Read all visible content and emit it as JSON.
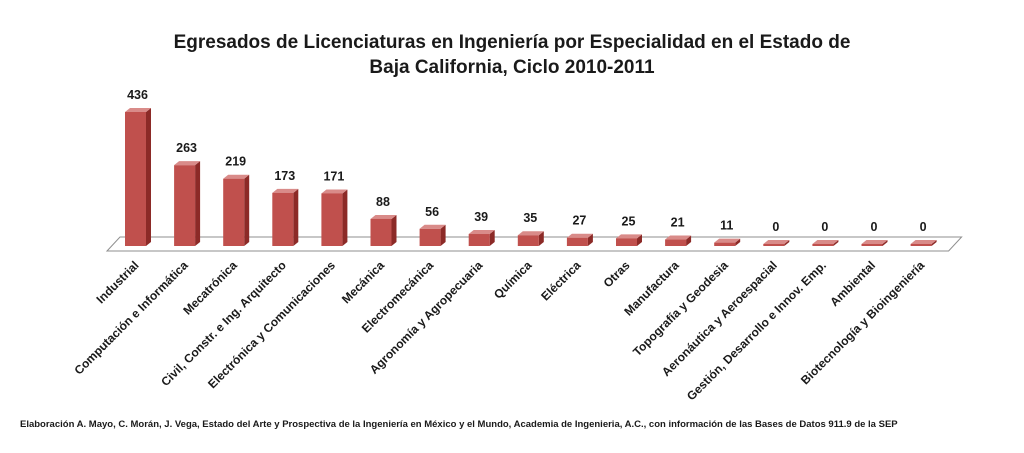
{
  "chart_data": {
    "type": "bar",
    "title": "Egresados de Licenciaturas en Ingeniería por Especialidad en el Estado de Baja California, Ciclo 2010-2011",
    "title_lines": [
      "Egresados de Licenciaturas en Ingeniería por Especialidad en el Estado de",
      "Baja California, Ciclo 2010-2011"
    ],
    "categories": [
      "Industrial",
      "Computación e Informática",
      "Mecatrónica",
      "Civil, Constr. e Ing. Arquitecto",
      "Electrónica y Comunicaciones",
      "Mecánica",
      "Electromecánica",
      "Agronomía y Agropecuaria",
      "Química",
      "Eléctrica",
      "Otras",
      "Manufactura",
      "Topografía y Geodesia",
      "Aeronáutica y Aeroespacial",
      "Gestión, Desarrollo e Innov. Emp.",
      "Ambiental",
      "Biotecnología y Bioingeniería"
    ],
    "values": [
      436,
      263,
      219,
      173,
      171,
      88,
      56,
      39,
      35,
      27,
      25,
      21,
      11,
      0,
      0,
      0,
      0
    ],
    "data_labels": [
      "436",
      "263",
      "219",
      "173",
      "171",
      "88",
      "56",
      "39",
      "35",
      "27",
      "25",
      "21",
      "11",
      "0",
      "0",
      "0",
      "0"
    ],
    "ylim": [
      0,
      436
    ],
    "grid": false,
    "legend": "none",
    "style": "3d-column",
    "colors": {
      "bar_front": "#c0504d",
      "bar_side": "#8c2a27",
      "bar_top": "#d98b89",
      "floor": "#ffffff",
      "floor_edge": "#8f8f8f"
    }
  },
  "footer": {
    "source": "Elaboración A. Mayo, C. Morán, J. Vega, Estado del Arte y Prospectiva de la Ingeniería en México y el Mundo, Academia de Ingenieria, A.C., con información de las Bases de Datos  911.9  de la SEP"
  }
}
